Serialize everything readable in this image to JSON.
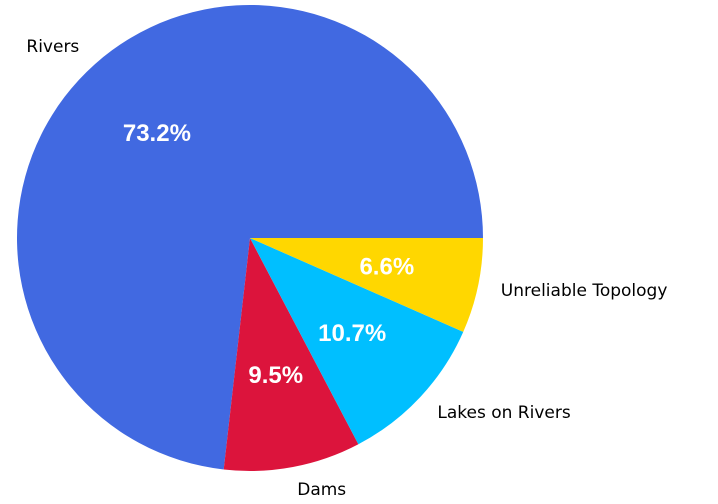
{
  "chart_data": {
    "type": "pie",
    "title": "",
    "start_angle_deg": 0,
    "direction": "counterclockwise",
    "slices": [
      {
        "label": "Rivers",
        "value": 73.2,
        "pct_label": "73.2%",
        "color": "#4169E1"
      },
      {
        "label": "Dams",
        "value": 9.5,
        "pct_label": "9.5%",
        "color": "#DC143C"
      },
      {
        "label": "Lakes on Rivers",
        "value": 10.7,
        "pct_label": "10.7%",
        "color": "#00BFFF"
      },
      {
        "label": "Unreliable Topology",
        "value": 6.6,
        "pct_label": "6.6%",
        "color": "#FFD700"
      }
    ]
  }
}
